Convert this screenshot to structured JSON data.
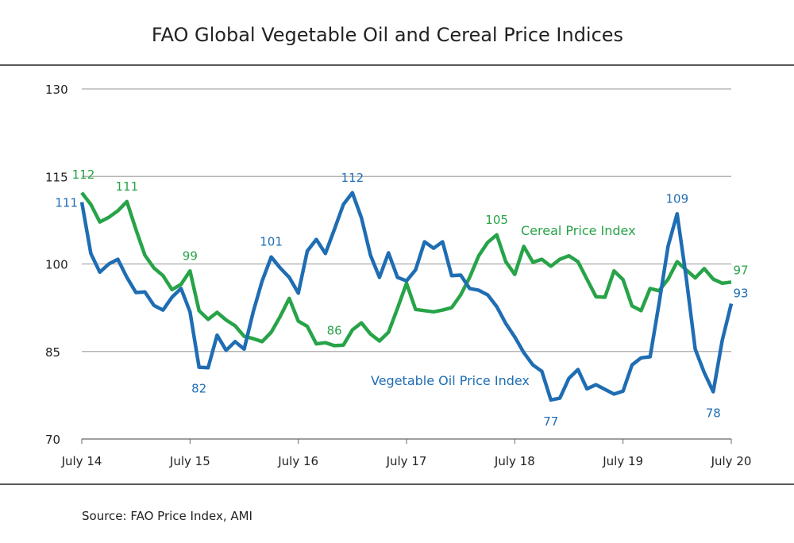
{
  "chart_data": {
    "type": "line",
    "title": "FAO Global  Vegetable Oil and Cereal Price Indices",
    "source": "Source: FAO Price Index, AMI",
    "xlabel": "",
    "ylabel": "",
    "ylim": [
      70,
      130
    ],
    "yticks": [
      "70",
      "85",
      "100",
      "115",
      "130"
    ],
    "xticks": [
      "July 14",
      "July 15",
      "July 16",
      "July 17",
      "July 18",
      "July 19",
      "July 20"
    ],
    "x_start": "2014-07",
    "x_end": "2020-07",
    "x_interval": "monthly",
    "grid": "horizontal",
    "colors": {
      "vegetable_oil": "#1f6db3",
      "cereal": "#27a348",
      "grid": "#999999"
    },
    "series": [
      {
        "name": "Vegetable Oil Price Index",
        "color": "#1f6db3",
        "values": [
          110.6,
          101.8,
          98.6,
          100,
          100.8,
          97.7,
          95.1,
          95.2,
          92.9,
          92.1,
          94.3,
          95.8,
          91.8,
          82.3,
          82.2,
          87.8,
          85.2,
          86.7,
          85.4,
          91.8,
          97.1,
          101.2,
          99.3,
          97.7,
          95,
          102.2,
          104.2,
          101.8,
          105.9,
          110.2,
          112.2,
          107.9,
          101.5,
          97.7,
          101.9,
          97.7,
          97.1,
          99,
          103.8,
          102.7,
          103.8,
          98,
          98.1,
          95.8,
          95.5,
          94.7,
          92.7,
          89.8,
          87.5,
          84.8,
          82.7,
          81.6,
          76.7,
          77,
          80.4,
          81.9,
          78.6,
          79.3,
          78.5,
          77.7,
          78.2,
          82.7,
          83.9,
          84.1,
          93.3,
          103.1,
          108.6,
          97.7,
          85.4,
          81.4,
          78.1,
          86.9,
          93.2
        ]
      },
      {
        "name": "Cereal Price Index",
        "color": "#27a348",
        "values": [
          112.2,
          110.2,
          107.2,
          108,
          109.1,
          110.7,
          105.9,
          101.5,
          99.3,
          98,
          95.6,
          96.5,
          98.8,
          92,
          90.5,
          91.7,
          90.4,
          89.4,
          87.6,
          87.2,
          86.7,
          88.3,
          91,
          94.1,
          90.2,
          89.3,
          86.3,
          86.5,
          86,
          86.1,
          88.7,
          89.9,
          88,
          86.8,
          88.3,
          92.4,
          96.7,
          92.2,
          92,
          91.8,
          92.1,
          92.5,
          94.7,
          97.7,
          101.4,
          103.7,
          105,
          100.4,
          98.2,
          103,
          100.3,
          100.8,
          99.6,
          100.8,
          101.4,
          100.4,
          97.4,
          94.4,
          94.3,
          98.8,
          97.3,
          92.8,
          92,
          95.8,
          95.4,
          97.4,
          100.4,
          99,
          97.6,
          99.2,
          97.4,
          96.7,
          96.9
        ]
      }
    ],
    "annotations": [
      {
        "series": 0,
        "index": 0,
        "text": "111"
      },
      {
        "series": 0,
        "index": 13,
        "text": "82"
      },
      {
        "series": 0,
        "index": 21,
        "text": "101"
      },
      {
        "series": 0,
        "index": 30,
        "text": "112"
      },
      {
        "series": 0,
        "index": 52,
        "text": "77"
      },
      {
        "series": 0,
        "index": 66,
        "text": "109"
      },
      {
        "series": 0,
        "index": 70,
        "text": "78"
      },
      {
        "series": 0,
        "index": 72,
        "text": "93"
      },
      {
        "series": 1,
        "index": 0,
        "text": "112"
      },
      {
        "series": 1,
        "index": 5,
        "text": "111"
      },
      {
        "series": 1,
        "index": 12,
        "text": "99"
      },
      {
        "series": 1,
        "index": 28,
        "text": "86"
      },
      {
        "series": 1,
        "index": 46,
        "text": "105"
      },
      {
        "series": 1,
        "index": 72,
        "text": "97"
      }
    ]
  }
}
